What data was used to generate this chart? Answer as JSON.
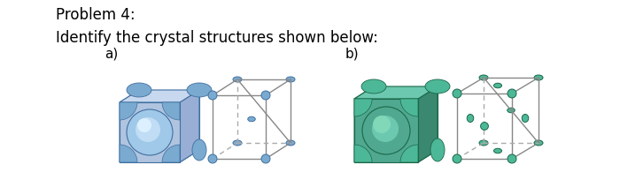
{
  "title_line1": "Problem 4:",
  "title_line2": "Identify the crystal structures shown below:",
  "label_a": "a)",
  "label_b": "b)",
  "bg_color": "#ffffff",
  "text_color": "#000000",
  "font_size_title": 12,
  "font_size_body": 12,
  "font_size_label": 11,
  "blue_face_light": "#c8d8ef",
  "blue_face_mid": "#b0c4e0",
  "blue_face_dark": "#98aed4",
  "blue_atom": "#7aaad0",
  "blue_atom_edge": "#4070a0",
  "blue_sphere_light": "#d0e4f8",
  "blue_sphere_center": "#80c0f0",
  "teal_face_light": "#6dc8b0",
  "teal_face_mid": "#50a890",
  "teal_face_dark": "#3a8870",
  "teal_atom": "#4db898",
  "teal_atom_edge": "#1a6848",
  "teal_sphere_light": "#80d8b8",
  "cube_line": "#888888",
  "cube_dash": "#aaaaaa",
  "figsize": [
    7.0,
    2.12
  ],
  "dpi": 100
}
